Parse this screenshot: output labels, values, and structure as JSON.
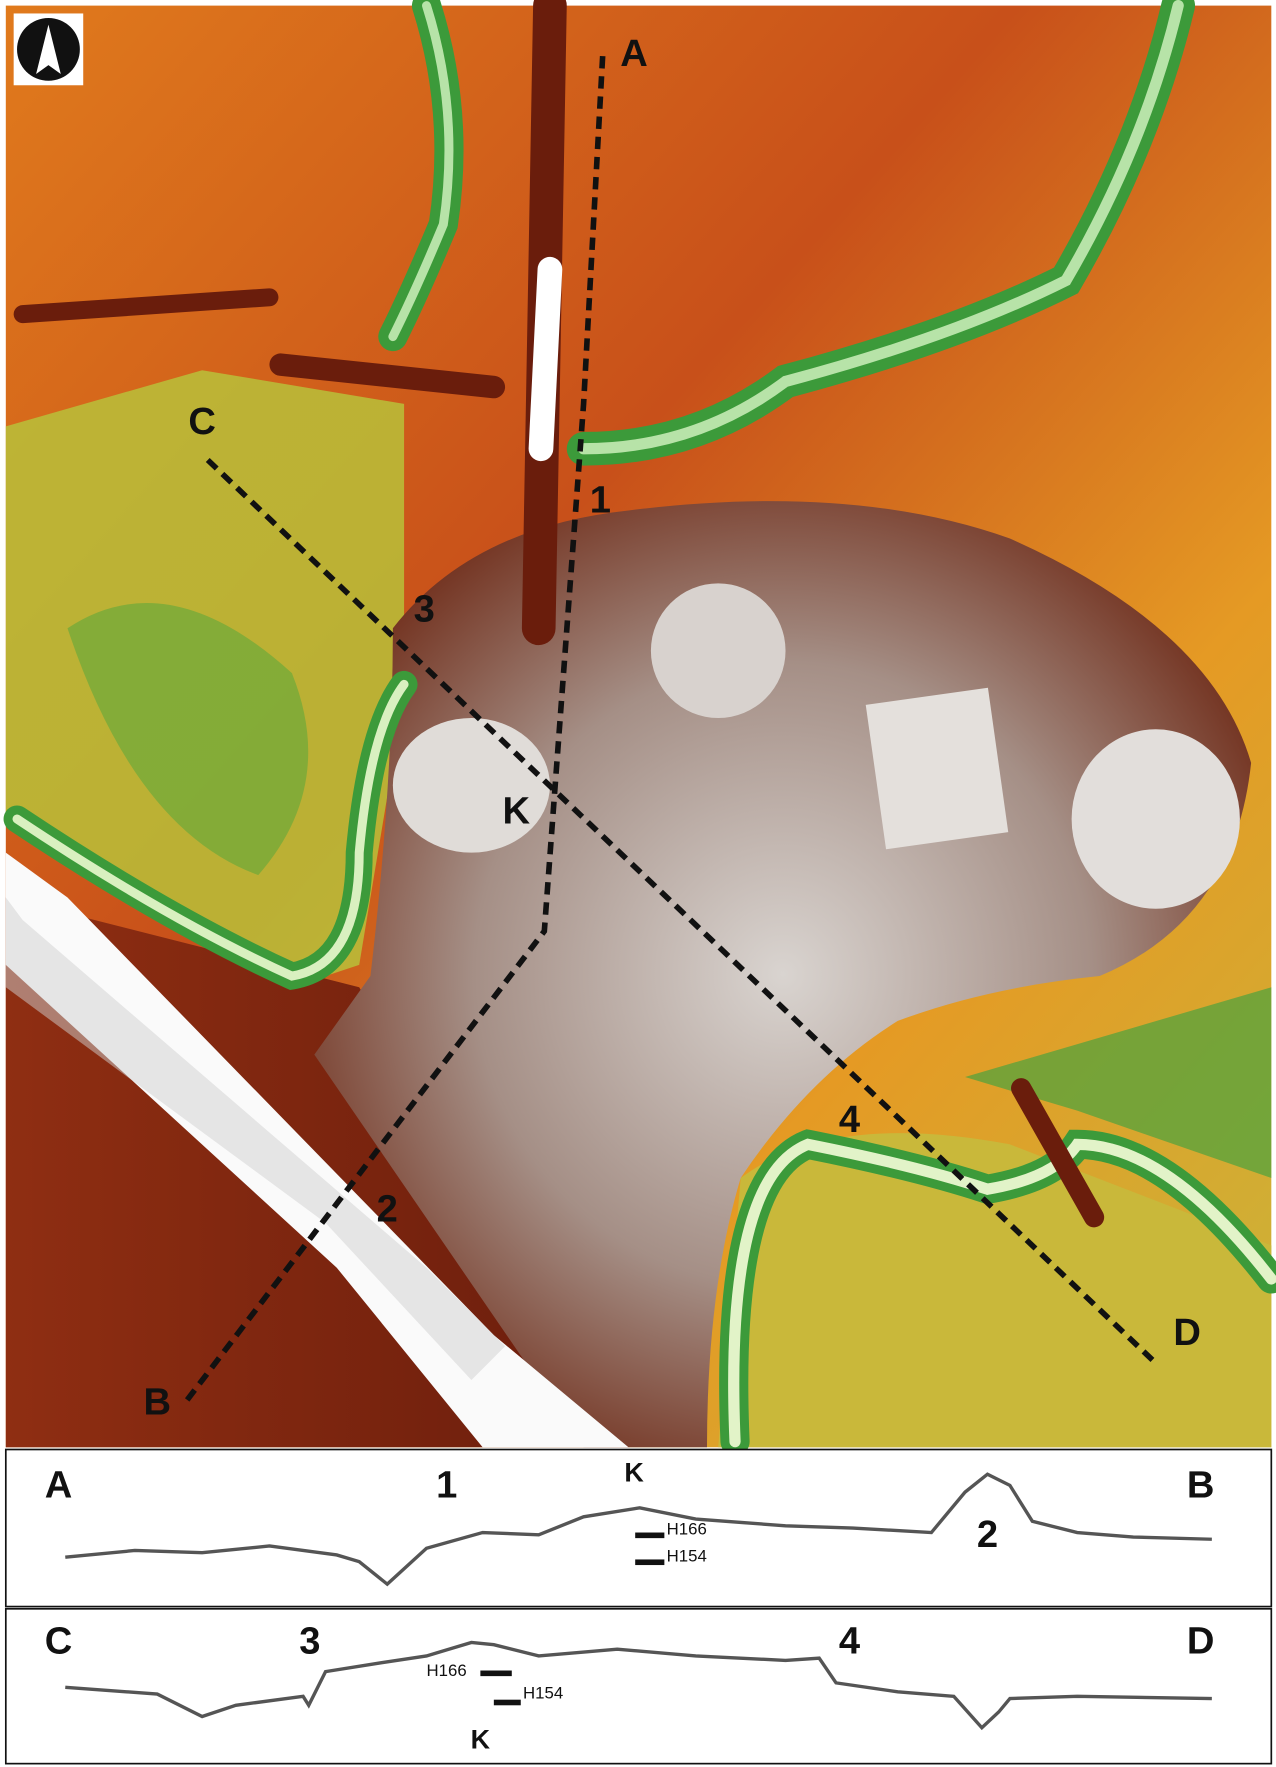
{
  "map": {
    "labels": [
      "A",
      "B",
      "C",
      "D",
      "1",
      "2",
      "3",
      "4",
      "K"
    ]
  },
  "profiles": [
    {
      "labels": [
        "A",
        "1",
        "K",
        "B",
        "2"
      ],
      "markers": [
        "H166",
        "H154"
      ]
    },
    {
      "labels": [
        "C",
        "3",
        "4",
        "D",
        "K"
      ],
      "markers": [
        "H166",
        "H154"
      ]
    }
  ]
}
